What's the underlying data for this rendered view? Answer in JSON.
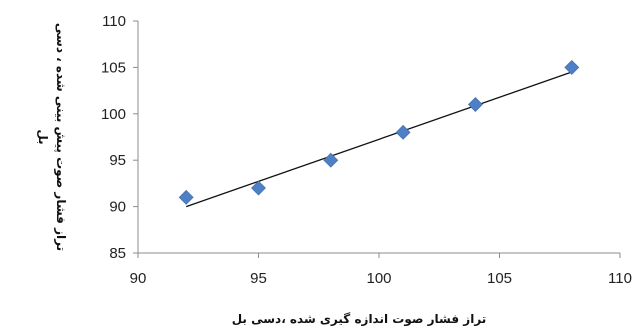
{
  "chart_data": {
    "type": "scatter",
    "xlabel": "تراز فشار صوت اندازه گیری شده ،دسی بل",
    "ylabel_lines": [
      "تراز فشار صوت پیش بینی شده ، دسی",
      "بل"
    ],
    "xlim": [
      90,
      110
    ],
    "ylim": [
      85,
      110
    ],
    "x_ticks": [
      90,
      95,
      100,
      105,
      110
    ],
    "y_ticks": [
      85,
      90,
      95,
      100,
      105,
      110
    ],
    "grid": false,
    "trendline": {
      "type": "linear",
      "x": [
        92,
        108
      ],
      "y": [
        90.0,
        104.5
      ]
    },
    "series": [
      {
        "x": [
          92,
          95,
          98,
          101,
          104,
          108
        ],
        "y": [
          91,
          92,
          95,
          98,
          101,
          105
        ],
        "marker": "diamond",
        "color": "#4f7fc4"
      }
    ]
  }
}
